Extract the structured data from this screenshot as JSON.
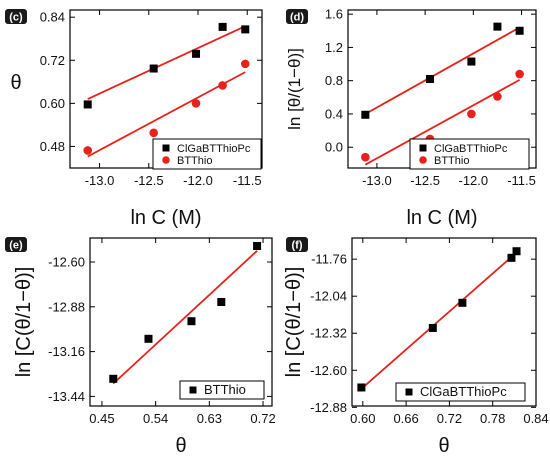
{
  "chart_data": [
    {
      "panel": "(c)",
      "type": "scatter",
      "xlabel": "ln C (M)",
      "ylabel": "θ",
      "xlim": [
        -13.3,
        -11.35
      ],
      "ylim": [
        0.42,
        0.86
      ],
      "xticks": [
        -13.0,
        -12.5,
        -12.0,
        -11.5
      ],
      "xtick_labels": [
        "-13.0",
        "-12.5",
        "-12.0",
        "-11.5"
      ],
      "yticks": [
        0.48,
        0.6,
        0.72,
        0.84
      ],
      "ytick_labels": [
        "0.48",
        "0.60",
        "0.72",
        "0.84"
      ],
      "legend_position": "bottom-right",
      "series": [
        {
          "name": "ClGaBTThioPc",
          "marker": "square",
          "color": "#000000",
          "x": [
            -13.12,
            -12.45,
            -12.02,
            -11.75,
            -11.52
          ],
          "y": [
            0.597,
            0.697,
            0.738,
            0.813,
            0.806
          ],
          "fit": {
            "x": [
              -13.12,
              -11.52
            ],
            "y": [
              0.612,
              0.815
            ],
            "color": "#e8211b"
          }
        },
        {
          "name": "BTThio",
          "marker": "circle",
          "color": "#e8211b",
          "x": [
            -13.12,
            -12.45,
            -12.02,
            -11.75,
            -11.52
          ],
          "y": [
            0.469,
            0.518,
            0.6,
            0.65,
            0.71
          ],
          "fit": {
            "x": [
              -13.12,
              -11.52
            ],
            "y": [
              0.452,
              0.687
            ],
            "color": "#e8211b"
          }
        }
      ]
    },
    {
      "panel": "(d)",
      "type": "scatter",
      "xlabel": "ln C (M)",
      "ylabel": "ln [θ/(1−θ)]",
      "xlim": [
        -13.3,
        -11.35
      ],
      "ylim": [
        -0.25,
        1.65
      ],
      "xticks": [
        -13.0,
        -12.5,
        -12.0,
        -11.5
      ],
      "xtick_labels": [
        "-13.0",
        "-12.5",
        "-12.0",
        "-11.5"
      ],
      "yticks": [
        0.0,
        0.4,
        0.8,
        1.2,
        1.6
      ],
      "ytick_labels": [
        "0.0",
        "0.4",
        "0.8",
        "1.2",
        "1.6"
      ],
      "legend_position": "bottom-right",
      "series": [
        {
          "name": "ClGaBTThioPc",
          "marker": "square",
          "color": "#000000",
          "x": [
            -13.12,
            -12.45,
            -12.02,
            -11.75,
            -11.52
          ],
          "y": [
            0.39,
            0.82,
            1.03,
            1.45,
            1.4
          ],
          "fit": {
            "x": [
              -13.12,
              -11.52
            ],
            "y": [
              0.4,
              1.44
            ],
            "color": "#e8211b"
          }
        },
        {
          "name": "BTThio",
          "marker": "circle",
          "color": "#e8211b",
          "x": [
            -13.12,
            -12.45,
            -12.02,
            -11.75,
            -11.52
          ],
          "y": [
            -0.12,
            0.1,
            0.4,
            0.61,
            0.88
          ],
          "fit": {
            "x": [
              -13.12,
              -11.52
            ],
            "y": [
              -0.21,
              0.81
            ],
            "color": "#e8211b"
          }
        }
      ]
    },
    {
      "panel": "(e)",
      "type": "scatter",
      "xlabel": "θ",
      "ylabel": "ln [C(θ/1−θ)]",
      "xlim": [
        0.43,
        0.735
      ],
      "ylim": [
        -13.5,
        -12.45
      ],
      "xticks": [
        0.45,
        0.54,
        0.63,
        0.72
      ],
      "xtick_labels": [
        "0.45",
        "0.54",
        "0.63",
        "0.72"
      ],
      "yticks": [
        -13.44,
        -13.16,
        -12.88,
        -12.6
      ],
      "ytick_labels": [
        "-13.44",
        "-13.16",
        "-12.88",
        "-12.60"
      ],
      "legend_position": "bottom-right",
      "series": [
        {
          "name": "BTThio",
          "marker": "square",
          "color": "#000000",
          "x": [
            0.469,
            0.528,
            0.6,
            0.65,
            0.71
          ],
          "y": [
            -13.33,
            -13.08,
            -12.97,
            -12.85,
            -12.5
          ],
          "fit": {
            "x": [
              0.469,
              0.71
            ],
            "y": [
              -13.36,
              -12.53
            ],
            "color": "#e8211b"
          }
        }
      ]
    },
    {
      "panel": "(f)",
      "type": "scatter",
      "xlabel": "θ",
      "ylabel": "ln [C(θ/1−θ)]",
      "xlim": [
        0.585,
        0.84
      ],
      "ylim": [
        -12.87,
        -11.6
      ],
      "xticks": [
        0.6,
        0.66,
        0.72,
        0.78,
        0.84
      ],
      "xtick_labels": [
        "0.60",
        "0.66",
        "0.72",
        "0.78",
        "0.84"
      ],
      "yticks": [
        -12.88,
        -12.6,
        -12.32,
        -12.04,
        -11.76
      ],
      "ytick_labels": [
        "-12.88",
        "-12.60",
        "-12.32",
        "-12.04",
        "-11.76"
      ],
      "legend_position": "bottom-right",
      "series": [
        {
          "name": "ClGaBTThioPc",
          "marker": "square",
          "color": "#000000",
          "x": [
            0.598,
            0.697,
            0.738,
            0.806,
            0.813
          ],
          "y": [
            -12.73,
            -12.28,
            -12.09,
            -11.75,
            -11.7
          ],
          "fit": {
            "x": [
              0.598,
              0.813
            ],
            "y": [
              -12.74,
              -11.71
            ],
            "color": "#e8211b"
          }
        }
      ]
    }
  ]
}
